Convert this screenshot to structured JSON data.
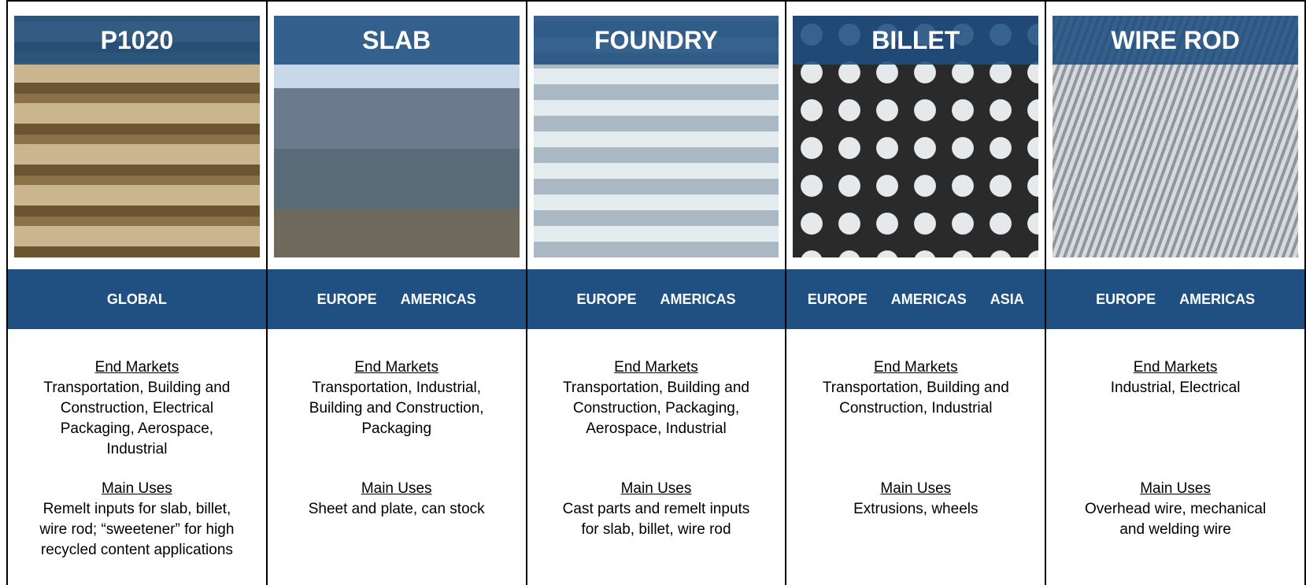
{
  "columns": [
    {
      "title": "P1020",
      "regions": [
        "GLOBAL"
      ],
      "end_markets_heading": "End Markets",
      "end_markets": [
        "Transportation, Building and",
        "Construction, Electrical",
        "Packaging, Aerospace,",
        "Industrial"
      ],
      "main_uses_heading": "Main Uses",
      "main_uses": [
        "Remelt inputs for slab, billet,",
        "wire rod; “sweetener” for high",
        "recycled content applications"
      ]
    },
    {
      "title": "SLAB",
      "regions": [
        "EUROPE",
        "AMERICAS"
      ],
      "end_markets_heading": "End Markets",
      "end_markets": [
        "Transportation, Industrial,",
        "Building and Construction,",
        "Packaging"
      ],
      "main_uses_heading": "Main Uses",
      "main_uses": [
        "Sheet and plate, can stock"
      ]
    },
    {
      "title": "FOUNDRY",
      "regions": [
        "EUROPE",
        "AMERICAS"
      ],
      "end_markets_heading": "End Markets",
      "end_markets": [
        "Transportation, Building and",
        "Construction, Packaging,",
        "Aerospace, Industrial"
      ],
      "main_uses_heading": "Main Uses",
      "main_uses": [
        "Cast parts and remelt inputs",
        "for slab, billet, wire rod"
      ]
    },
    {
      "title": "BILLET",
      "regions": [
        "EUROPE",
        "AMERICAS",
        "ASIA"
      ],
      "end_markets_heading": "End Markets",
      "end_markets": [
        "Transportation, Building and",
        "Construction, Industrial"
      ],
      "main_uses_heading": "Main Uses",
      "main_uses": [
        "Extrusions, wheels"
      ]
    },
    {
      "title": "WIRE ROD",
      "regions": [
        "EUROPE",
        "AMERICAS"
      ],
      "end_markets_heading": "End Markets",
      "end_markets": [
        "Industrial, Electrical"
      ],
      "main_uses_heading": "Main Uses",
      "main_uses": [
        "Overhead wire, mechanical",
        "and welding wire"
      ]
    }
  ]
}
